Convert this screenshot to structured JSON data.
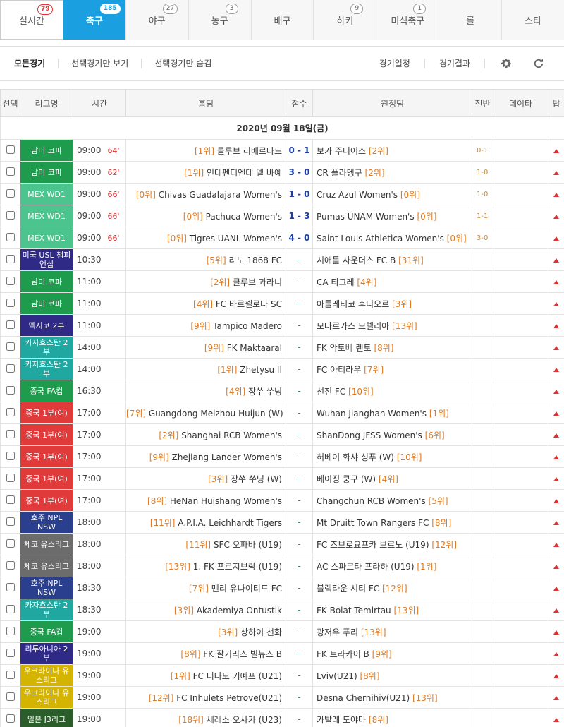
{
  "sport_tabs": [
    {
      "label": "실시간",
      "count": "79"
    },
    {
      "label": "축구",
      "count": "185"
    },
    {
      "label": "야구",
      "count": "27"
    },
    {
      "label": "농구",
      "count": "3"
    },
    {
      "label": "배구",
      "count": ""
    },
    {
      "label": "하키",
      "count": "9"
    },
    {
      "label": "미식축구",
      "count": "1"
    },
    {
      "label": "롤",
      "count": ""
    },
    {
      "label": "스타",
      "count": ""
    }
  ],
  "filters": {
    "all": "모든경기",
    "show_selected": "선택경기만 보기",
    "hide_selected": "선택경기만 숨김",
    "schedule": "경기일정",
    "results": "경기결과"
  },
  "colors": {
    "accent": "#1aa0e0",
    "live_minute": "#e03030",
    "score": "#1a3fa8",
    "rank": "#e07a20",
    "league_green": "#1f9b4e",
    "league_mint": "#4cc48e",
    "league_navy": "#2e2a86",
    "league_teal": "#20a8a0",
    "league_red": "#e03a3a",
    "league_dark_blue": "#2a3f8e",
    "league_grey": "#6c6c6c",
    "league_yellow": "#d4b400",
    "league_dark_green": "#2a5d2a"
  },
  "icons": {
    "settings": "gear-icon",
    "refresh": "refresh-icon",
    "tip": "triangle-up-icon"
  },
  "table": {
    "headers": {
      "select": "선택",
      "league": "리그명",
      "time": "시간",
      "home": "홈팀",
      "score": "점수",
      "away": "원정팀",
      "half": "전반",
      "data": "데이타",
      "tip": "탑"
    },
    "date": "2020년 09월 18일(금)",
    "rows": [
      {
        "league": "남미 코파",
        "color": "#1f9b4e",
        "time": "09:00",
        "minute": "64'",
        "home_rank": "[1위]",
        "home": "클루브 리베르타드",
        "score": "0 - 1",
        "away": "보카 주니어스",
        "away_rank": "[2위]",
        "half": "0-1"
      },
      {
        "league": "남미 코파",
        "color": "#1f9b4e",
        "time": "09:00",
        "minute": "62'",
        "home_rank": "[1위]",
        "home": "인데펜디엔테 델 바예",
        "score": "3 - 0",
        "away": "CR 플라멩구",
        "away_rank": "[2위]",
        "half": "1-0"
      },
      {
        "league": "MEX WD1",
        "color": "#4cc48e",
        "time": "09:00",
        "minute": "66'",
        "home_rank": "[0위]",
        "home": "Chivas Guadalajara Women's",
        "score": "1 - 0",
        "away": "Cruz Azul Women's",
        "away_rank": "[0위]",
        "half": "1-0"
      },
      {
        "league": "MEX WD1",
        "color": "#4cc48e",
        "time": "09:00",
        "minute": "66'",
        "home_rank": "[0위]",
        "home": "Pachuca Women's",
        "score": "1 - 3",
        "away": "Pumas UNAM Women's",
        "away_rank": "[0위]",
        "half": "1-1"
      },
      {
        "league": "MEX WD1",
        "color": "#4cc48e",
        "time": "09:00",
        "minute": "66'",
        "home_rank": "[0위]",
        "home": "Tigres UANL Women's",
        "score": "4 - 0",
        "away": "Saint Louis Athletica Women's",
        "away_rank": "[0위]",
        "half": "3-0"
      },
      {
        "league": "미국 USL 챔피언십",
        "color": "#2e2a86",
        "time": "10:30",
        "minute": "",
        "home_rank": "[5위]",
        "home": "리노 1868 FC",
        "score": "-",
        "away": "시애틀 사운더스 FC B",
        "away_rank": "[31위]",
        "half": ""
      },
      {
        "league": "남미 코파",
        "color": "#1f9b4e",
        "time": "11:00",
        "minute": "",
        "home_rank": "[2위]",
        "home": "클루브 과라니",
        "score": "-",
        "away": "CA 티그레",
        "away_rank": "[4위]",
        "half": ""
      },
      {
        "league": "남미 코파",
        "color": "#1f9b4e",
        "time": "11:00",
        "minute": "",
        "home_rank": "[4위]",
        "home": "FC 바르셀로나 SC",
        "score": "-",
        "away": "아틀레티코 후니오르",
        "away_rank": "[3위]",
        "half": ""
      },
      {
        "league": "멕시코 2부",
        "color": "#2e2a86",
        "time": "11:00",
        "minute": "",
        "home_rank": "[9위]",
        "home": "Tampico Madero",
        "score": "-",
        "away": "모나르카스 모렐리아",
        "away_rank": "[13위]",
        "half": ""
      },
      {
        "league": "카자흐스탄 2부",
        "color": "#20a8a0",
        "time": "14:00",
        "minute": "",
        "home_rank": "[9위]",
        "home": "FK Maktaaral",
        "score": "-",
        "away": "FK 악토베 렌토",
        "away_rank": "[8위]",
        "half": ""
      },
      {
        "league": "카자흐스탄 2부",
        "color": "#20a8a0",
        "time": "14:00",
        "minute": "",
        "home_rank": "[1위]",
        "home": "Zhetysu II",
        "score": "-",
        "away": "FC 아티라우",
        "away_rank": "[7위]",
        "half": ""
      },
      {
        "league": "중국 FA컵",
        "color": "#1f9b4e",
        "time": "16:30",
        "minute": "",
        "home_rank": "[4위]",
        "home": "장쑤 쑤닝",
        "score": "-",
        "away": "선전 FC",
        "away_rank": "[10위]",
        "half": ""
      },
      {
        "league": "중국 1부(여)",
        "color": "#e03a3a",
        "time": "17:00",
        "minute": "",
        "home_rank": "[7위]",
        "home": "Guangdong Meizhou Huijun (W)",
        "score": "-",
        "away": "Wuhan Jianghan Women's",
        "away_rank": "[1위]",
        "half": ""
      },
      {
        "league": "중국 1부(여)",
        "color": "#e03a3a",
        "time": "17:00",
        "minute": "",
        "home_rank": "[2위]",
        "home": "Shanghai RCB Women's",
        "score": "-",
        "away": "ShanDong JFSS Women's",
        "away_rank": "[6위]",
        "half": ""
      },
      {
        "league": "중국 1부(여)",
        "color": "#e03a3a",
        "time": "17:00",
        "minute": "",
        "home_rank": "[9위]",
        "home": "Zhejiang Lander Women's",
        "score": "-",
        "away": "허베이 화샤 싱푸 (W)",
        "away_rank": "[10위]",
        "half": ""
      },
      {
        "league": "중국 1부(여)",
        "color": "#e03a3a",
        "time": "17:00",
        "minute": "",
        "home_rank": "[3위]",
        "home": "장쑤 쑤닝 (W)",
        "score": "-",
        "away": "베이징 쿵구 (W)",
        "away_rank": "[4위]",
        "half": ""
      },
      {
        "league": "중국 1부(여)",
        "color": "#e03a3a",
        "time": "17:00",
        "minute": "",
        "home_rank": "[8위]",
        "home": "HeNan Huishang Women's",
        "score": "-",
        "away": "Changchun RCB Women's",
        "away_rank": "[5위]",
        "half": ""
      },
      {
        "league": "호주 NPL NSW",
        "color": "#2a3f8e",
        "time": "18:00",
        "minute": "",
        "home_rank": "[11위]",
        "home": "A.P.I.A. Leichhardt Tigers",
        "score": "-",
        "away": "Mt Druitt Town Rangers FC",
        "away_rank": "[8위]",
        "half": ""
      },
      {
        "league": "체코 유스리그",
        "color": "#6c6c6c",
        "time": "18:00",
        "minute": "",
        "home_rank": "[11위]",
        "home": "SFC 오파바 (U19)",
        "score": "-",
        "away": "FC 즈브로요프카 브르노 (U19)",
        "away_rank": "[12위]",
        "half": ""
      },
      {
        "league": "체코 유스리그",
        "color": "#6c6c6c",
        "time": "18:00",
        "minute": "",
        "home_rank": "[13위]",
        "home": "1. FK 프르지브람 (U19)",
        "score": "-",
        "away": "AC 스파르타 프라하 (U19)",
        "away_rank": "[1위]",
        "half": ""
      },
      {
        "league": "호주 NPL NSW",
        "color": "#2a3f8e",
        "time": "18:30",
        "minute": "",
        "home_rank": "[7위]",
        "home": "맨리 유나이티드 FC",
        "score": "-",
        "away": "블랙타운 시티 FC",
        "away_rank": "[12위]",
        "half": ""
      },
      {
        "league": "카자흐스탄 2부",
        "color": "#20a8a0",
        "time": "18:30",
        "minute": "",
        "home_rank": "[3위]",
        "home": "Akademiya Ontustik",
        "score": "-",
        "away": "FK Bolat Temirtau",
        "away_rank": "[13위]",
        "half": ""
      },
      {
        "league": "중국 FA컵",
        "color": "#1f9b4e",
        "time": "19:00",
        "minute": "",
        "home_rank": "[3위]",
        "home": "상하이 선화",
        "score": "-",
        "away": "광저우 푸리",
        "away_rank": "[13위]",
        "half": ""
      },
      {
        "league": "리투아니아 2부",
        "color": "#2e2a86",
        "time": "19:00",
        "minute": "",
        "home_rank": "[8위]",
        "home": "FK 잘기리스 빌뉴스 B",
        "score": "-",
        "away": "FK 트라카이 B",
        "away_rank": "[9위]",
        "half": ""
      },
      {
        "league": "우크라이나 유스리그",
        "color": "#d4b400",
        "time": "19:00",
        "minute": "",
        "home_rank": "[1위]",
        "home": "FC 디나모 키예프 (U21)",
        "score": "-",
        "away": "Lviv(U21)",
        "away_rank": "[8위]",
        "half": ""
      },
      {
        "league": "우크라이나 유스리그",
        "color": "#d4b400",
        "time": "19:00",
        "minute": "",
        "home_rank": "[12위]",
        "home": "FC Inhulets Petrove(U21)",
        "score": "-",
        "away": "Desna Chernihiv(U21)",
        "away_rank": "[13위]",
        "half": ""
      },
      {
        "league": "일본 J3리그",
        "color": "#2a5d2a",
        "time": "19:00",
        "minute": "",
        "home_rank": "[18위]",
        "home": "세레소 오사카 (U23)",
        "score": "-",
        "away": "카탈레 도야마",
        "away_rank": "[8위]",
        "half": ""
      }
    ]
  }
}
